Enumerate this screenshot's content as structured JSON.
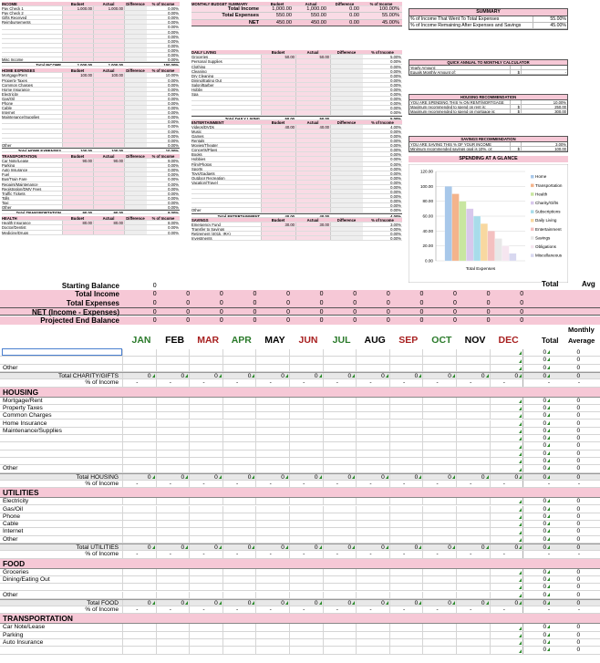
{
  "income": {
    "title": "INCOME",
    "headers": [
      "Budget",
      "Actual",
      "Difference",
      "% of Income"
    ],
    "rows": [
      [
        "Pay Check 1",
        "1,000.00",
        "1,000.00",
        "",
        "0.00%"
      ],
      [
        "Pay Check 2",
        "",
        "",
        "",
        "0.00%"
      ],
      [
        "Gifts Received",
        "",
        "",
        "",
        "0.00%"
      ],
      [
        "Reimbursements",
        "",
        "",
        "",
        "0.00%"
      ],
      [
        "",
        "",
        "",
        "",
        "0.00%"
      ],
      [
        "",
        "",
        "",
        "",
        "0.00%"
      ],
      [
        "",
        "",
        "",
        "",
        "0.00%"
      ],
      [
        "",
        "",
        "",
        "",
        "0.00%"
      ],
      [
        "",
        "",
        "",
        "",
        "0.00%"
      ],
      [
        "",
        "",
        "",
        "",
        "0.00%"
      ],
      [
        "",
        "",
        "",
        "",
        "0.00%"
      ],
      [
        "Misc Income",
        "",
        "",
        "",
        "0.00%"
      ]
    ],
    "total": [
      "Total INCOME",
      "1,000.00",
      "1,000.00",
      "",
      "100.00%"
    ]
  },
  "home": {
    "title": "HOME EXPENSES",
    "headers": [
      "Budget",
      "Actual",
      "Difference",
      "% of Income"
    ],
    "rows": [
      [
        "Mortgage/Rent",
        "100.00",
        "100.00",
        "",
        "10.00%"
      ],
      [
        "Property Taxes",
        "",
        "",
        "",
        "0.00%"
      ],
      [
        "Common Charges",
        "",
        "",
        "",
        "0.00%"
      ],
      [
        "Home Insurance",
        "",
        "",
        "",
        "0.00%"
      ],
      [
        "Electricity",
        "",
        "",
        "",
        "0.00%"
      ],
      [
        "Gas/Oil",
        "",
        "",
        "",
        "0.00%"
      ],
      [
        "Phone",
        "",
        "",
        "",
        "0.00%"
      ],
      [
        "Cable",
        "",
        "",
        "",
        "0.00%"
      ],
      [
        "Internet",
        "",
        "",
        "",
        "0.00%"
      ],
      [
        "Maintenance/Supplies",
        "",
        "",
        "",
        "0.00%"
      ],
      [
        "",
        "",
        "",
        "",
        "0.00%"
      ],
      [
        "",
        "",
        "",
        "",
        "0.00%"
      ],
      [
        "",
        "",
        "",
        "",
        "0.00%"
      ],
      [
        "",
        "",
        "",
        "",
        "0.00%"
      ],
      [
        "",
        "",
        "",
        "",
        "0.00%"
      ],
      [
        "Other",
        "",
        "",
        "",
        "0.00%"
      ]
    ],
    "total": [
      "Total HOME EXPENSES",
      "100.00",
      "100.00",
      "",
      "10.00%"
    ]
  },
  "transport": {
    "title": "TRANSPORTATION",
    "headers": [
      "Budget",
      "Actual",
      "Difference",
      "% of Income"
    ],
    "rows": [
      [
        "Car Note/Lease",
        "90.00",
        "90.00",
        "",
        "9.00%"
      ],
      [
        "Parking",
        "",
        "",
        "",
        "0.00%"
      ],
      [
        "Auto Insurance",
        "",
        "",
        "",
        "0.00%"
      ],
      [
        "Fuel",
        "",
        "",
        "",
        "0.00%"
      ],
      [
        "Bus/Train Fare",
        "",
        "",
        "",
        "0.00%"
      ],
      [
        "Repairs/Maintenance",
        "",
        "",
        "",
        "0.00%"
      ],
      [
        "Registration/DMV Fees",
        "",
        "",
        "",
        "0.00%"
      ],
      [
        "Traffic Tickets",
        "",
        "",
        "",
        "0.00%"
      ],
      [
        "Tolls",
        "",
        "",
        "",
        "0.00%"
      ],
      [
        "Taxi",
        "",
        "",
        "",
        "0.00%"
      ],
      [
        "Other",
        "",
        "",
        "",
        "0.00%"
      ]
    ],
    "total": [
      "Total TRANSPORTATION",
      "90.00",
      "90.00",
      "",
      "9.00%"
    ]
  },
  "health": {
    "title": "HEALTH",
    "headers": [
      "Budget",
      "Actual",
      "Difference",
      "% of Income"
    ],
    "rows": [
      [
        "Health Insurance",
        "80.00",
        "80.00",
        "",
        "8.00%"
      ],
      [
        "Doctor/Dentist",
        "",
        "",
        "",
        "0.00%"
      ],
      [
        "Medicine/Drugs",
        "",
        "",
        "",
        "0.00%"
      ]
    ]
  },
  "mbs": {
    "title": "MONTHLY BUDGET SUMMARY",
    "headers": [
      "Budget",
      "Actual",
      "Difference",
      "% of Income"
    ],
    "rows": [
      [
        "Total Income",
        "1,000.00",
        "1,000.00",
        "0.00",
        "100.00%"
      ],
      [
        "Total Expenses",
        "550.00",
        "550.00",
        "0.00",
        "55.00%"
      ],
      [
        "NET",
        "450.00",
        "450.00",
        "0.00",
        "45.00%"
      ]
    ]
  },
  "daily": {
    "title": "DAILY LIVING",
    "headers": [
      "Budget",
      "Actual",
      "Difference",
      "% of Income"
    ],
    "rows": [
      [
        "Groceries",
        "50.00",
        "50.00",
        "",
        "5.00%"
      ],
      [
        "Personal Supplies",
        "",
        "",
        "",
        "0.00%"
      ],
      [
        "Clothing",
        "",
        "",
        "",
        "0.00%"
      ],
      [
        "Cleaning",
        "",
        "",
        "",
        "0.00%"
      ],
      [
        "Dry Cleaning",
        "",
        "",
        "",
        "0.00%"
      ],
      [
        "Dining/Eating Out",
        "",
        "",
        "",
        "0.00%"
      ],
      [
        "Salon/Barber",
        "",
        "",
        "",
        "0.00%"
      ],
      [
        "Hobby",
        "",
        "",
        "",
        "0.00%"
      ],
      [
        "Spa",
        "",
        "",
        "",
        "0.00%"
      ],
      [
        "",
        "",
        "",
        "",
        "0.00%"
      ],
      [
        "",
        "",
        "",
        "",
        "0.00%"
      ],
      [
        "",
        "",
        "",
        "",
        "0.00%"
      ],
      [
        "",
        "",
        "",
        "",
        "0.00%"
      ]
    ],
    "total": [
      "Total DAILY LIVING",
      "50.00",
      "50.00",
      "",
      "5.00%"
    ]
  },
  "ent": {
    "title": "ENTERTAINMENT",
    "headers": [
      "Budget",
      "Actual",
      "Difference",
      "% of Income"
    ],
    "rows": [
      [
        "Videos/DVDs",
        "40.00",
        "40.00",
        "",
        "4.00%"
      ],
      [
        "Music",
        "",
        "",
        "",
        "0.00%"
      ],
      [
        "Games",
        "",
        "",
        "",
        "0.00%"
      ],
      [
        "Rentals",
        "",
        "",
        "",
        "0.00%"
      ],
      [
        "Movies/Theater",
        "",
        "",
        "",
        "0.00%"
      ],
      [
        "Concerts/Plays",
        "",
        "",
        "",
        "0.00%"
      ],
      [
        "Books",
        "",
        "",
        "",
        "0.00%"
      ],
      [
        "Hobbies",
        "",
        "",
        "",
        "0.00%"
      ],
      [
        "Film/Photos",
        "",
        "",
        "",
        "0.00%"
      ],
      [
        "Sports",
        "",
        "",
        "",
        "0.00%"
      ],
      [
        "Toys/Gadgets",
        "",
        "",
        "",
        "0.00%"
      ],
      [
        "Outdoor Recreation",
        "",
        "",
        "",
        "0.00%"
      ],
      [
        "Vacation/Travel",
        "",
        "",
        "",
        "0.00%"
      ],
      [
        "",
        "",
        "",
        "",
        "0.00%"
      ],
      [
        "",
        "",
        "",
        "",
        "0.00%"
      ],
      [
        "",
        "",
        "",
        "",
        "0.00%"
      ],
      [
        "",
        "",
        "",
        "",
        "0.00%"
      ],
      [
        "",
        "",
        "",
        "",
        "0.00%"
      ],
      [
        "Other",
        "",
        "",
        "",
        "0.00%"
      ]
    ],
    "total": [
      "Total ENTERTAINMENT",
      "40.00",
      "40.00",
      "",
      "4.00%"
    ]
  },
  "savings": {
    "title": "SAVINGS",
    "headers": [
      "Budget",
      "Actual",
      "Difference",
      "% of Income"
    ],
    "rows": [
      [
        "Emergency Fund",
        "30.00",
        "30.00",
        "",
        "3.00%"
      ],
      [
        "Transfer to Savings",
        "",
        "",
        "",
        "0.00%"
      ],
      [
        "Retirement (401k, IRA)",
        "",
        "",
        "",
        "0.00%"
      ],
      [
        "Investments",
        "",
        "",
        "",
        "0.00%"
      ]
    ]
  },
  "summary": {
    "title": "SUMMARY",
    "rows": [
      [
        "% of Income That Went To Total Expenses",
        "55.00%"
      ],
      [
        "% of Income Remaining After Expenses and Savings",
        "45.00%"
      ]
    ]
  },
  "quick": {
    "title": "QUICK ANNUAL TO MONTHLY CALCULATOR",
    "rows": [
      [
        "Yearly Amount:",
        "",
        ""
      ],
      [
        "Equals Monthly Amount of:",
        "$",
        "-"
      ]
    ]
  },
  "housing_rec": {
    "title": "HOUSING RECOMMENDATION",
    "rows": [
      [
        "YOU ARE SPENDING THIS % ON RENT/MORTGAGE",
        "",
        "10.00%"
      ],
      [
        "Maximum recommended to spend on rent is:",
        "$",
        "250.00"
      ],
      [
        "Maximum recommended to spend on mortgage is:",
        "$",
        "300.00"
      ]
    ]
  },
  "savings_rec": {
    "title": "SAVINGS RECOMMENDATION",
    "rows": [
      [
        "YOU ARE SAVING THIS % OF YOUR INCOME",
        "",
        "3.00%"
      ],
      [
        "Minimum recommended savings goal is 10%, or:",
        "$",
        "100.00"
      ]
    ]
  },
  "chart_data": {
    "type": "bar",
    "title": "SPENDING AT A GLANCE",
    "xlabel": "Total Expenses",
    "ylim": [
      0,
      120
    ],
    "yticks": [
      "120.00",
      "100.00",
      "80.00",
      "60.00",
      "40.00",
      "20.00",
      "0.00"
    ],
    "series": [
      {
        "name": "Home",
        "values": [
          100
        ],
        "color": "#a8c8ea"
      },
      {
        "name": "Transportation",
        "values": [
          90
        ],
        "color": "#f4b48c"
      },
      {
        "name": "Health",
        "values": [
          80
        ],
        "color": "#c8e6a0"
      },
      {
        "name": "Charity/Gifts",
        "values": [
          70
        ],
        "color": "#d8c8ec"
      },
      {
        "name": "Subscriptions",
        "values": [
          60
        ],
        "color": "#a8dcea"
      },
      {
        "name": "Daily Living",
        "values": [
          50
        ],
        "color": "#f8d8a0"
      },
      {
        "name": "Entertainment",
        "values": [
          40
        ],
        "color": "#f4c0c0"
      },
      {
        "name": "Savings",
        "values": [
          30
        ],
        "color": "#e8e8e8"
      },
      {
        "name": "Obligations",
        "values": [
          20
        ],
        "color": "#f6e6f0"
      },
      {
        "name": "Miscellaneous",
        "values": [
          10
        ],
        "color": "#d8d8f0"
      }
    ]
  },
  "mid": {
    "total_label": "Total",
    "avg_label": "Avg",
    "rows": [
      {
        "label": "Starting Balance",
        "vals": [
          "0",
          "",
          "",
          "",
          "",
          "",
          "",
          "",
          "",
          "",
          "",
          ""
        ],
        "style": "pink"
      },
      {
        "label": "Total Income",
        "vals": [
          "0",
          "0",
          "0",
          "0",
          "0",
          "0",
          "0",
          "0",
          "0",
          "0",
          "0",
          "0"
        ],
        "style": "pink"
      },
      {
        "label": "Total Expenses",
        "vals": [
          "0",
          "0",
          "0",
          "0",
          "0",
          "0",
          "0",
          "0",
          "0",
          "0",
          "0",
          "0"
        ],
        "style": "pink"
      },
      {
        "label": "NET (Income - Expenses)",
        "vals": [
          "0",
          "0",
          "0",
          "0",
          "0",
          "0",
          "0",
          "0",
          "0",
          "0",
          "0",
          "0"
        ],
        "style": "pink"
      },
      {
        "label": "Projected End Balance",
        "vals": [
          "0",
          "0",
          "0",
          "0",
          "0",
          "0",
          "0",
          "0",
          "0",
          "0",
          "0",
          "0"
        ],
        "style": "pink"
      }
    ]
  },
  "months": [
    {
      "m": "JAN",
      "c": "#2a7a2a"
    },
    {
      "m": "FEB",
      "c": "#000"
    },
    {
      "m": "MAR",
      "c": "#a82020"
    },
    {
      "m": "APR",
      "c": "#2a7a2a"
    },
    {
      "m": "MAY",
      "c": "#000"
    },
    {
      "m": "JUN",
      "c": "#a82020"
    },
    {
      "m": "JUL",
      "c": "#2a7a2a"
    },
    {
      "m": "AUG",
      "c": "#000"
    },
    {
      "m": "SEP",
      "c": "#a82020"
    },
    {
      "m": "OCT",
      "c": "#2a7a2a"
    },
    {
      "m": "NOV",
      "c": "#000"
    },
    {
      "m": "DEC",
      "c": "#a82020"
    }
  ],
  "col_total": "Total",
  "col_monthly": "Monthly",
  "col_average": "Average",
  "grid": [
    {
      "t": "row",
      "label": "",
      "y": 383
    },
    {
      "t": "row",
      "label": "",
      "y": 391.3
    },
    {
      "t": "row",
      "label": "Other",
      "y": 399.6
    },
    {
      "t": "tot",
      "label": "Total CHARITY/GIFTS",
      "y": 408
    },
    {
      "t": "pct",
      "label": "% of Income",
      "y": 416.3
    },
    {
      "t": "sec",
      "label": "HOUSING",
      "y": 424.6
    },
    {
      "t": "row",
      "label": "Mortgage/Rent",
      "y": 435.6
    },
    {
      "t": "row",
      "label": "Property Taxes",
      "y": 443.9
    },
    {
      "t": "row",
      "label": "Common Charges",
      "y": 452.2
    },
    {
      "t": "row",
      "label": "Home Insurance",
      "y": 460.5
    },
    {
      "t": "row",
      "label": "Maintenance/Supplies",
      "y": 468.8
    },
    {
      "t": "row",
      "label": "",
      "y": 477.1
    },
    {
      "t": "row",
      "label": "",
      "y": 485.4
    },
    {
      "t": "row",
      "label": "",
      "y": 493.7
    },
    {
      "t": "row",
      "label": "",
      "y": 502
    },
    {
      "t": "row",
      "label": "Other",
      "y": 510.3
    },
    {
      "t": "tot",
      "label": "Total HOUSING",
      "y": 518.6
    },
    {
      "t": "pct",
      "label": "% of Income",
      "y": 526.9
    },
    {
      "t": "sec",
      "label": "UTILITIES",
      "y": 535.2
    },
    {
      "t": "row",
      "label": "Electricity",
      "y": 546.2
    },
    {
      "t": "row",
      "label": "Gas/Oil",
      "y": 554.5
    },
    {
      "t": "row",
      "label": "Phone",
      "y": 562.8
    },
    {
      "t": "row",
      "label": "Cable",
      "y": 571.1
    },
    {
      "t": "row",
      "label": "Internet",
      "y": 579.4
    },
    {
      "t": "row",
      "label": "Other",
      "y": 587.7
    },
    {
      "t": "tot",
      "label": "Total UTILITIES",
      "y": 596
    },
    {
      "t": "pct",
      "label": "% of Income",
      "y": 604.3
    },
    {
      "t": "sec",
      "label": "FOOD",
      "y": 612.6
    },
    {
      "t": "row",
      "label": "Groceries",
      "y": 623.6
    },
    {
      "t": "row",
      "label": "Dining/Eating Out",
      "y": 631.9
    },
    {
      "t": "row",
      "label": "",
      "y": 640.2
    },
    {
      "t": "row",
      "label": "Other",
      "y": 648.5
    },
    {
      "t": "tot",
      "label": "Total FOOD",
      "y": 656.8
    },
    {
      "t": "pct",
      "label": "% of Income",
      "y": 665.1
    },
    {
      "t": "sec",
      "label": "TRANSPORTATION",
      "y": 673.4
    },
    {
      "t": "row",
      "label": "Car Note/Lease",
      "y": 684.4
    },
    {
      "t": "row",
      "label": "Parking",
      "y": 692.7
    },
    {
      "t": "row",
      "label": "Auto Insurance",
      "y": 701
    },
    {
      "t": "row",
      "label": "",
      "y": 709.3
    }
  ]
}
